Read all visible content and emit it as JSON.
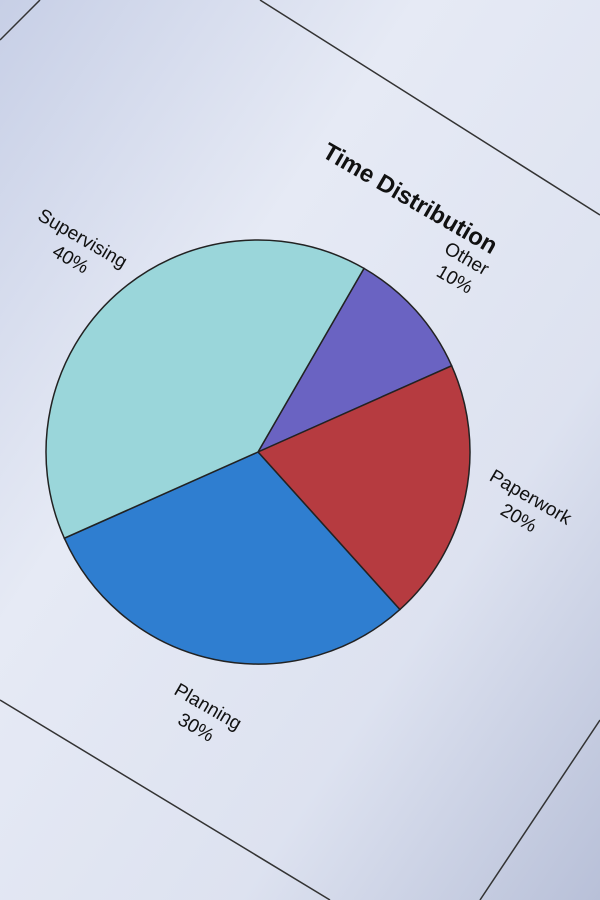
{
  "chart_data": {
    "type": "pie",
    "title": "Time Distribution",
    "categories": [
      "Other",
      "Paperwork",
      "Planning",
      "Supervising"
    ],
    "values": [
      10,
      20,
      30,
      40
    ],
    "value_labels": [
      "10%",
      "20%",
      "30%",
      "40%"
    ],
    "colors": [
      "#6a63c2",
      "#b63b40",
      "#2f7ed0",
      "#9ad6da"
    ]
  }
}
